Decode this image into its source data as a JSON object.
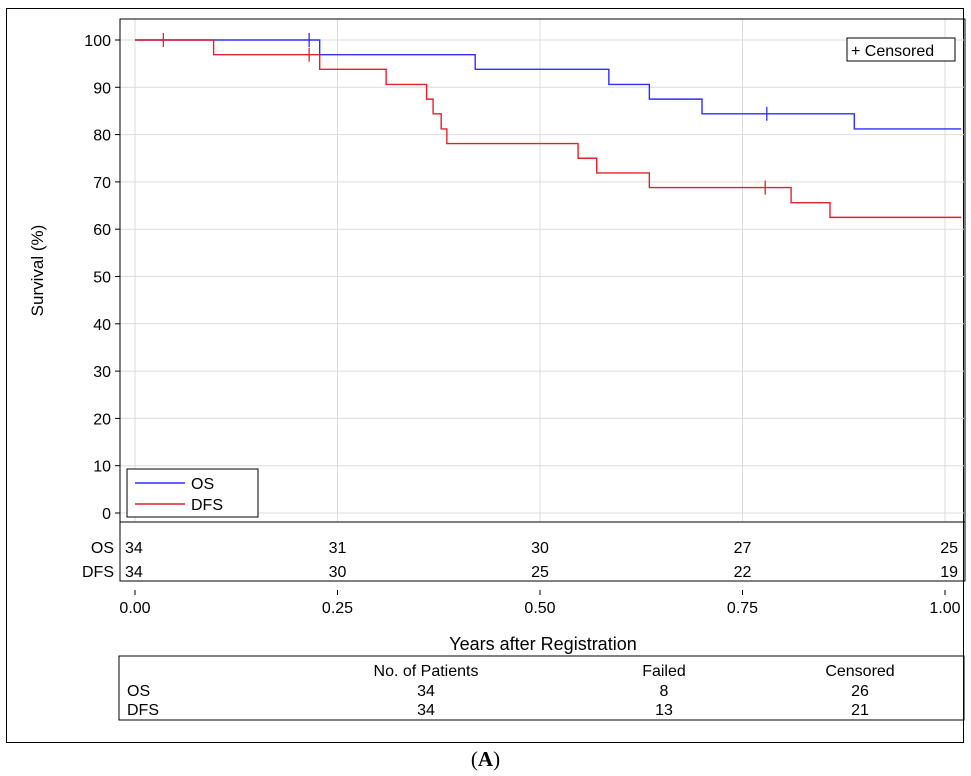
{
  "chart_data": {
    "type": "line",
    "subtype": "kaplan-meier step",
    "xlabel": "Years after Registration",
    "ylabel": "Survival (%)",
    "xlim": [
      0,
      1.02
    ],
    "ylim": [
      0,
      100
    ],
    "x_ticks": [
      "0.00",
      "0.25",
      "0.50",
      "0.75",
      "1.00"
    ],
    "y_ticks": [
      "0",
      "10",
      "20",
      "30",
      "40",
      "50",
      "60",
      "70",
      "80",
      "90",
      "100"
    ],
    "grid": true,
    "censor_legend": "+ Censored",
    "legend_position": "bottom-left",
    "series": [
      {
        "name": "OS",
        "color": "#2f2fff",
        "steps": [
          [
            0,
            100
          ],
          [
            0.228,
            96.9
          ],
          [
            0.42,
            93.8
          ],
          [
            0.585,
            90.6
          ],
          [
            0.635,
            87.5
          ],
          [
            0.7,
            84.4
          ],
          [
            0.888,
            81.2
          ]
        ],
        "censored": [
          [
            0.215,
            100
          ],
          [
            0.78,
            84.4
          ]
        ]
      },
      {
        "name": "DFS",
        "color": "#e4212b",
        "steps": [
          [
            0,
            100
          ],
          [
            0.097,
            96.9
          ],
          [
            0.228,
            93.8
          ],
          [
            0.31,
            90.6
          ],
          [
            0.36,
            87.5
          ],
          [
            0.368,
            84.4
          ],
          [
            0.378,
            81.2
          ],
          [
            0.385,
            78.1
          ],
          [
            0.547,
            75.0
          ],
          [
            0.57,
            71.9
          ],
          [
            0.635,
            68.8
          ],
          [
            0.81,
            65.6
          ],
          [
            0.858,
            62.5
          ]
        ],
        "censored": [
          [
            0.035,
            100
          ],
          [
            0.215,
            96.9
          ],
          [
            0.778,
            68.8
          ]
        ]
      }
    ],
    "at_risk": {
      "times": [
        0,
        0.25,
        0.5,
        0.75,
        1.0
      ],
      "rows": [
        {
          "label": "OS",
          "values": [
            "34",
            "31",
            "30",
            "27",
            "25"
          ]
        },
        {
          "label": "DFS",
          "values": [
            "34",
            "30",
            "25",
            "22",
            "19"
          ]
        }
      ]
    },
    "summary_table": {
      "headers": [
        "",
        "No. of Patients",
        "Failed",
        "Censored"
      ],
      "rows": [
        [
          "OS",
          "34",
          "8",
          "26"
        ],
        [
          "DFS",
          "34",
          "13",
          "21"
        ]
      ]
    }
  },
  "caption": {
    "open": "(",
    "letter": "A",
    "close": ")"
  }
}
